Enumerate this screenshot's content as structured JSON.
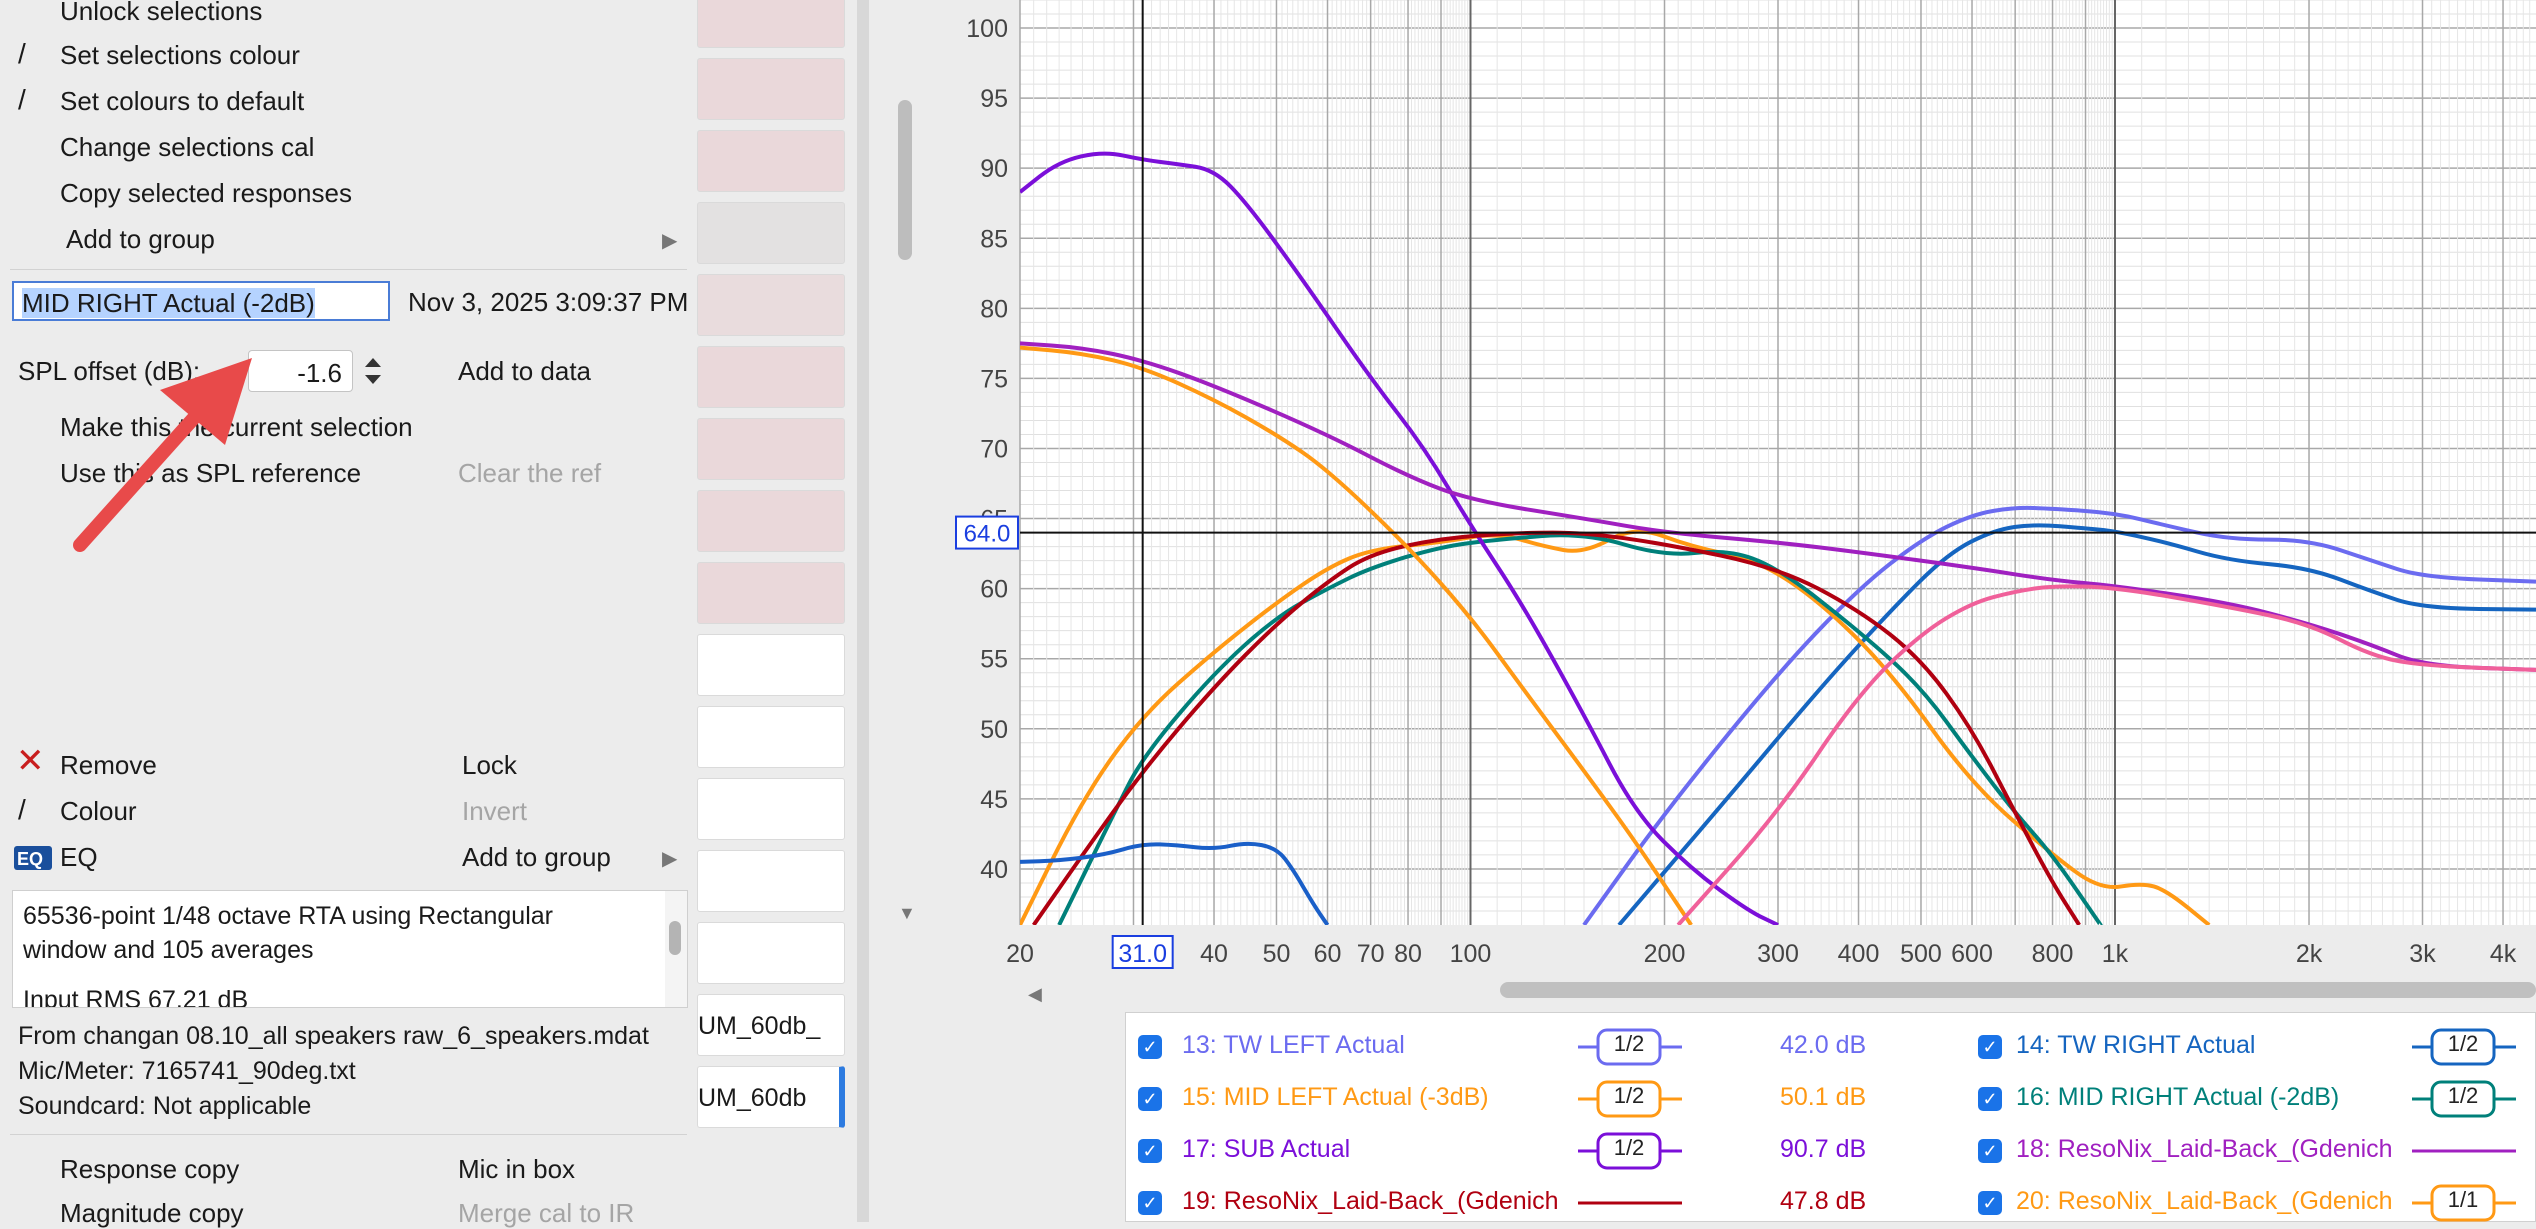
{
  "menu": {
    "unlock": "Unlock selections",
    "set_colour": "Set selections colour",
    "set_default": "Set colours to default",
    "change_cal": "Change selections cal",
    "copy_resp": "Copy selected responses",
    "add_group": "Add to group",
    "name_value": "MID RIGHT Actual (-2dB)",
    "timestamp": "Nov 3, 2025 3:09:37 PM",
    "spl_label": "SPL offset (dB):",
    "spl_value": "-1.6",
    "add_to_data": "Add to data",
    "make_current": "Make this the current selection",
    "use_spl_ref": "Use this as SPL reference",
    "clear_ref": "Clear the ref",
    "remove": "Remove",
    "lock": "Lock",
    "colour": "Colour",
    "invert": "Invert",
    "eq": "EQ",
    "add_group2": "Add to group",
    "notes_line1": "65536-point 1/48 octave RTA using Rectangular",
    "notes_line2": "window and 105 averages",
    "notes_line3": "Input RMS 67.21 dB",
    "from": "From changan 08.10_all speakers raw_6_speakers.mdat",
    "mic": "Mic/Meter: 7165741_90deg.txt",
    "soundcard": "Soundcard: Not applicable",
    "response_copy": "Response copy",
    "mic_in_box": "Mic in box",
    "magnitude_copy": "Magnitude copy",
    "merge_cal": "Merge cal to IR"
  },
  "list_cells": [
    "",
    "",
    "",
    "",
    "",
    "",
    "",
    "",
    "",
    "",
    "",
    "",
    "",
    "",
    "UM_60db_",
    "UM_60db"
  ],
  "cursor": {
    "x_label": "31.0",
    "y_label": "64.0"
  },
  "colors": {
    "tw_left": "#6b6bf0",
    "tw_right": "#1565c0",
    "mid_left": "#ff9914",
    "mid_right": "#00807a",
    "sub": "#7b0fd9",
    "reso18": "#a020c0",
    "reso19": "#b00010",
    "reso20": "#ff9914",
    "pink": "#f0609a",
    "blue2": "#1a5fc8"
  },
  "chart_data": {
    "type": "line",
    "title": "",
    "xlabel": "",
    "ylabel": "",
    "x_scale": "log",
    "xlim": [
      20,
      4500
    ],
    "ylim": [
      36,
      102
    ],
    "grid": true,
    "x_ticks": [
      "20",
      "40",
      "50",
      "60",
      "70",
      "80",
      "100",
      "200",
      "300",
      "400",
      "500",
      "600",
      "800",
      "1k",
      "2k",
      "3k",
      "4k"
    ],
    "x_tick_values": [
      20,
      40,
      50,
      60,
      70,
      80,
      100,
      200,
      300,
      400,
      500,
      600,
      800,
      1000,
      2000,
      3000,
      4000
    ],
    "y_ticks": [
      40,
      45,
      50,
      55,
      60,
      65,
      70,
      75,
      80,
      85,
      90,
      95,
      100
    ],
    "series": [
      {
        "name": "13: TW LEFT Actual",
        "color": "#6b6bf0",
        "points": [
          [
            150,
            36
          ],
          [
            200,
            44
          ],
          [
            300,
            54
          ],
          [
            400,
            60
          ],
          [
            500,
            63.5
          ],
          [
            600,
            65.3
          ],
          [
            700,
            65.8
          ],
          [
            800,
            65.7
          ],
          [
            1000,
            65.4
          ],
          [
            1200,
            64.5
          ],
          [
            1500,
            63.5
          ],
          [
            2000,
            63.5
          ],
          [
            2500,
            62
          ],
          [
            3000,
            60.8
          ],
          [
            4500,
            60.5
          ]
        ]
      },
      {
        "name": "14: TW RIGHT Actual",
        "color": "#1565c0",
        "points": [
          [
            170,
            36
          ],
          [
            250,
            45
          ],
          [
            350,
            53
          ],
          [
            450,
            58.5
          ],
          [
            550,
            62.5
          ],
          [
            650,
            64.2
          ],
          [
            750,
            64.6
          ],
          [
            900,
            64.3
          ],
          [
            1000,
            64.1
          ],
          [
            1200,
            63.3
          ],
          [
            1500,
            62
          ],
          [
            2000,
            61.5
          ],
          [
            2500,
            59.8
          ],
          [
            3000,
            58.6
          ],
          [
            4500,
            58.5
          ]
        ]
      },
      {
        "name": "15: MID LEFT Actual (-3dB)",
        "color": "#ff9914",
        "points": [
          [
            20,
            36
          ],
          [
            25,
            45
          ],
          [
            31,
            51
          ],
          [
            40,
            55.5
          ],
          [
            50,
            59
          ],
          [
            60,
            61.5
          ],
          [
            70,
            62.8
          ],
          [
            90,
            63.3
          ],
          [
            110,
            64
          ],
          [
            130,
            63
          ],
          [
            150,
            62.5
          ],
          [
            180,
            64.5
          ],
          [
            220,
            63
          ],
          [
            280,
            62
          ],
          [
            350,
            59
          ],
          [
            450,
            54
          ],
          [
            600,
            46
          ],
          [
            800,
            41
          ],
          [
            950,
            38.5
          ],
          [
            1100,
            39
          ],
          [
            1200,
            38.5
          ],
          [
            1400,
            36
          ]
        ]
      },
      {
        "name": "16: MID RIGHT Actual (-2dB)",
        "color": "#00807a",
        "points": [
          [
            23,
            36
          ],
          [
            28,
            44
          ],
          [
            31,
            48
          ],
          [
            40,
            54
          ],
          [
            50,
            58
          ],
          [
            60,
            60
          ],
          [
            70,
            61.5
          ],
          [
            90,
            63
          ],
          [
            110,
            63.5
          ],
          [
            150,
            64
          ],
          [
            200,
            62.3
          ],
          [
            250,
            62.8
          ],
          [
            300,
            61.5
          ],
          [
            400,
            57
          ],
          [
            500,
            53
          ],
          [
            600,
            48
          ],
          [
            700,
            44
          ],
          [
            800,
            41
          ],
          [
            950,
            36
          ]
        ]
      },
      {
        "name": "17: SUB Actual",
        "color": "#7b0fd9",
        "points": [
          [
            20,
            88.3
          ],
          [
            23,
            90.5
          ],
          [
            27,
            91.2
          ],
          [
            31,
            90.6
          ],
          [
            35,
            90.3
          ],
          [
            40,
            89.9
          ],
          [
            45,
            87.5
          ],
          [
            55,
            82
          ],
          [
            70,
            75
          ],
          [
            85,
            70
          ],
          [
            100,
            64.5
          ],
          [
            120,
            59
          ],
          [
            150,
            51
          ],
          [
            180,
            44
          ],
          [
            220,
            40
          ],
          [
            270,
            37
          ],
          [
            300,
            36
          ]
        ]
      },
      {
        "name": "18: ResoNix_Laid-Back_(Gdenich",
        "color": "#a020c0",
        "points": [
          [
            20,
            77.5
          ],
          [
            25,
            77.2
          ],
          [
            31,
            76.3
          ],
          [
            40,
            74.5
          ],
          [
            60,
            71
          ],
          [
            80,
            68
          ],
          [
            100,
            66.3
          ],
          [
            150,
            65
          ],
          [
            200,
            64
          ],
          [
            300,
            63.3
          ],
          [
            400,
            62.6
          ],
          [
            600,
            61.5
          ],
          [
            800,
            60.6
          ],
          [
            1000,
            60.2
          ],
          [
            1500,
            59
          ],
          [
            2000,
            57.5
          ],
          [
            2500,
            56
          ],
          [
            3000,
            54.5
          ],
          [
            4500,
            54.2
          ]
        ]
      },
      {
        "name": "19: ResoNix_Laid-Back_(Gdenich",
        "color": "#b00010",
        "points": [
          [
            21,
            36
          ],
          [
            25,
            41
          ],
          [
            31,
            47
          ],
          [
            40,
            53
          ],
          [
            50,
            57.5
          ],
          [
            60,
            60.5
          ],
          [
            70,
            62.5
          ],
          [
            90,
            63.6
          ],
          [
            120,
            64
          ],
          [
            150,
            64
          ],
          [
            200,
            63.2
          ],
          [
            300,
            61.5
          ],
          [
            400,
            58.5
          ],
          [
            500,
            55
          ],
          [
            600,
            50
          ],
          [
            700,
            44
          ],
          [
            800,
            39
          ],
          [
            880,
            36
          ]
        ]
      },
      {
        "name": "20: ResoNix_Laid-Back_(Gdenich",
        "color": "#ff9914",
        "points": [
          [
            20,
            77.2
          ],
          [
            25,
            76.8
          ],
          [
            31,
            75.8
          ],
          [
            40,
            73.5
          ],
          [
            50,
            71
          ],
          [
            60,
            68.5
          ],
          [
            80,
            63
          ],
          [
            100,
            58
          ],
          [
            120,
            53
          ],
          [
            150,
            47
          ],
          [
            180,
            42
          ],
          [
            220,
            36
          ]
        ]
      },
      {
        "name": "",
        "color": "#f0609a",
        "points": [
          [
            210,
            36
          ],
          [
            300,
            44
          ],
          [
            400,
            52.5
          ],
          [
            500,
            56.8
          ],
          [
            600,
            59
          ],
          [
            700,
            59.8
          ],
          [
            800,
            60.2
          ],
          [
            1000,
            60.1
          ],
          [
            1500,
            58.7
          ],
          [
            2000,
            57.5
          ],
          [
            2500,
            55.2
          ],
          [
            3000,
            54.5
          ],
          [
            4500,
            54.2
          ]
        ]
      },
      {
        "name": "",
        "color": "#1a5fc8",
        "points": [
          [
            20,
            40.5
          ],
          [
            23,
            40.6
          ],
          [
            27,
            41
          ],
          [
            31,
            41.8
          ],
          [
            35,
            41.7
          ],
          [
            40,
            41.4
          ],
          [
            45,
            41.9
          ],
          [
            50,
            41.5
          ],
          [
            53,
            40
          ],
          [
            57,
            37.5
          ],
          [
            60,
            36
          ]
        ]
      }
    ],
    "legend": [
      {
        "label": "13: TW LEFT Actual",
        "smoothing": "1/2",
        "level": "42.0 dB",
        "color": "#6b6bf0"
      },
      {
        "label": "14: TW RIGHT Actual",
        "smoothing": "1/2",
        "level": "",
        "color": "#1565c0"
      },
      {
        "label": "15: MID LEFT Actual (-3dB)",
        "smoothing": "1/2",
        "level": "50.1 dB",
        "color": "#ff9914"
      },
      {
        "label": "16: MID RIGHT Actual (-2dB)",
        "smoothing": "1/2",
        "level": "",
        "color": "#00807a"
      },
      {
        "label": "17: SUB Actual",
        "smoothing": "1/2",
        "level": "90.7 dB",
        "color": "#7b0fd9"
      },
      {
        "label": "18: ResoNix_Laid-Back_(Gdenich",
        "smoothing": "",
        "level": "",
        "color": "#a020c0"
      },
      {
        "label": "19: ResoNix_Laid-Back_(Gdenich",
        "smoothing": "",
        "level": "47.8 dB",
        "color": "#b00010"
      },
      {
        "label": "20: ResoNix_Laid-Back_(Gdenich",
        "smoothing": "1/1",
        "level": "",
        "color": "#ff9914"
      }
    ]
  }
}
